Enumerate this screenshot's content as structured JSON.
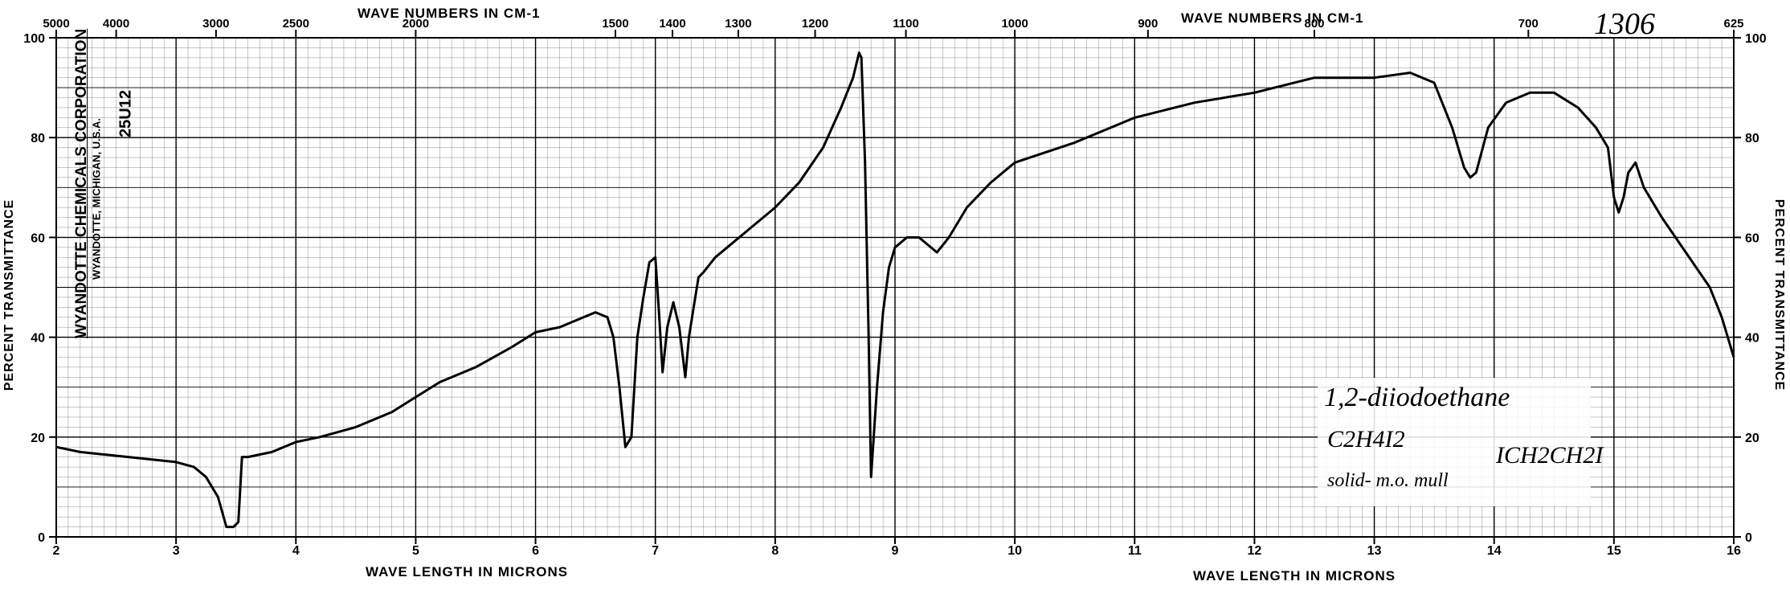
{
  "sheet": {
    "top_axis_title": "WAVE NUMBERS IN CM-1",
    "top_axis_title_right": "WAVE NUMBERS IN CM-1",
    "bottom_axis_title": "WAVE LENGTH IN MICRONS",
    "bottom_axis_title_right": "WAVE LENGTH IN MICRONS",
    "left_axis_title": "PERCENT TRANSMITTANCE",
    "right_axis_title": "PERCENT TRANSMITTANCE",
    "manufacturer": "WYANDOTTE CHEMICALS CORPORATION",
    "manufacturer_location": "WYANDOTTE, MICHIGAN, U.S.A.",
    "chart_code": "25U12",
    "sample_number": "1306",
    "compound_name": "1,2-diiodoethane",
    "formula": "C2H4I2",
    "structural_formula": "ICH2CH2I",
    "sample_state": "solid- m.o. mull"
  },
  "colors": {
    "grid": "#000000",
    "trace": "#000000",
    "paper": "#ffffff"
  },
  "chart_data": {
    "type": "line",
    "x_scale": "linear wavelength (microns)",
    "xlim": [
      2,
      16
    ],
    "ylim": [
      0,
      100
    ],
    "grid": true,
    "x_ticks": [
      2,
      3,
      4,
      5,
      6,
      7,
      8,
      9,
      10,
      11,
      12,
      13,
      14,
      15,
      16
    ],
    "y_ticks": [
      0,
      20,
      40,
      60,
      80,
      100
    ],
    "top_tick_labels": [
      "5000",
      "4000",
      "3000",
      "2500",
      "2000",
      "1500",
      "1400",
      "1300",
      "1200",
      "1100",
      "1000",
      "900",
      "800",
      "700",
      "625"
    ],
    "top_ticks": [
      5000,
      4000,
      3000,
      2500,
      2000,
      1500,
      1400,
      1300,
      1200,
      1100,
      1000,
      900,
      800,
      700,
      625
    ],
    "series": [
      {
        "x": [
          2.0,
          2.2,
          2.4,
          2.6,
          2.8,
          3.0,
          3.15,
          3.25,
          3.35,
          3.42,
          3.48,
          3.52,
          3.55,
          3.6,
          3.8,
          4.0,
          4.2,
          4.5,
          4.8,
          5.0,
          5.2,
          5.5,
          5.8,
          6.0,
          6.2,
          6.4,
          6.5,
          6.6,
          6.65,
          6.7,
          6.75,
          6.8,
          6.85,
          6.9,
          6.95,
          7.0,
          7.03,
          7.06,
          7.1,
          7.15,
          7.2,
          7.25,
          7.28,
          7.32,
          7.36,
          7.4,
          7.5,
          7.6,
          7.8,
          8.0,
          8.2,
          8.4,
          8.55,
          8.65,
          8.7,
          8.72,
          8.75,
          8.78,
          8.8,
          8.85,
          8.9,
          8.95,
          9.0,
          9.1,
          9.2,
          9.35,
          9.45,
          9.6,
          9.8,
          10.0,
          10.5,
          11.0,
          11.5,
          12.0,
          12.5,
          13.0,
          13.3,
          13.5,
          13.65,
          13.75,
          13.8,
          13.85,
          13.95,
          14.1,
          14.3,
          14.5,
          14.7,
          14.85,
          14.95,
          15.0,
          15.04,
          15.08,
          15.12,
          15.18,
          15.25,
          15.4,
          15.6,
          15.8,
          15.9,
          16.0
        ],
        "y": [
          18,
          17,
          16.5,
          16,
          15.5,
          15,
          14,
          12,
          8,
          2,
          2,
          3,
          16,
          16,
          17,
          19,
          20,
          22,
          25,
          28,
          31,
          34,
          38,
          41,
          42,
          44,
          45,
          44,
          40,
          30,
          18,
          20,
          40,
          48,
          55,
          56,
          45,
          33,
          42,
          47,
          42,
          32,
          40,
          46,
          52,
          53,
          56,
          58,
          62,
          66,
          71,
          78,
          86,
          92,
          97,
          96,
          75,
          40,
          12,
          30,
          45,
          54,
          58,
          60,
          60,
          57,
          60,
          66,
          71,
          75,
          79,
          84,
          87,
          89,
          92,
          92,
          93,
          91,
          82,
          74,
          72,
          73,
          82,
          87,
          89,
          89,
          86,
          82,
          78,
          68,
          65,
          68,
          73,
          75,
          70,
          64,
          57,
          50,
          44,
          36
        ]
      }
    ]
  }
}
